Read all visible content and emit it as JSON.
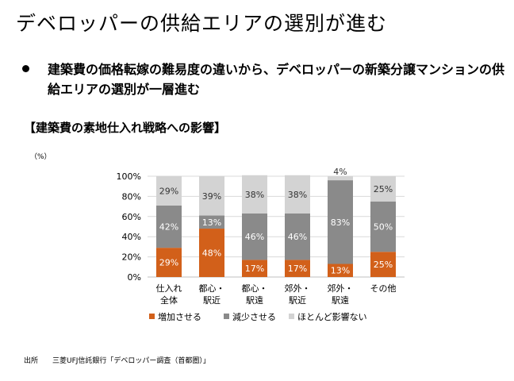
{
  "page": {
    "title": "デベロッパーの供給エリアの選別が進む",
    "bullet": "建築費の価格転嫁の難易度の違いから、デベロッパーの新築分譲マンションの供給エリアの選別が一層進む",
    "section_heading": "【建築費の素地仕入れ戦略への影響】",
    "unit": "（%）",
    "source": "出所　　三菱UFJ信託銀行「デベロッパー調査（首都圏）」"
  },
  "colors": {
    "increase": "#D2601A",
    "decrease": "#8A8A8A",
    "unchanged": "#D3D3D3",
    "gridline": "#D9D9D9"
  },
  "chart_data": {
    "type": "bar",
    "stacked": true,
    "categories": [
      [
        "仕入れ",
        "全体"
      ],
      [
        "都心・",
        "駅近"
      ],
      [
        "都心・",
        "駅遠"
      ],
      [
        "郊外・",
        "駅近"
      ],
      [
        "郊外・",
        "駅遠"
      ],
      [
        "その他"
      ]
    ],
    "series": [
      {
        "name": "増加させる",
        "values": [
          29,
          48,
          17,
          17,
          13,
          25
        ],
        "labels": [
          "29%",
          "48%",
          "17%",
          "17%",
          "13%",
          "25%"
        ]
      },
      {
        "name": "減少させる",
        "values": [
          42,
          13,
          46,
          46,
          83,
          50
        ],
        "labels": [
          "42%",
          "13%",
          "46%",
          "46%",
          "83%",
          "50%"
        ]
      },
      {
        "name": "ほとんど影響ない",
        "values": [
          29,
          39,
          38,
          38,
          4,
          25
        ],
        "labels": [
          "29%",
          "39%",
          "38%",
          "38%",
          "4%",
          "25%"
        ]
      }
    ],
    "ylim": [
      0,
      100
    ],
    "yticks": [
      "0%",
      "20%",
      "40%",
      "60%",
      "80%",
      "100%"
    ],
    "grid": true,
    "legend_position": "bottom"
  }
}
